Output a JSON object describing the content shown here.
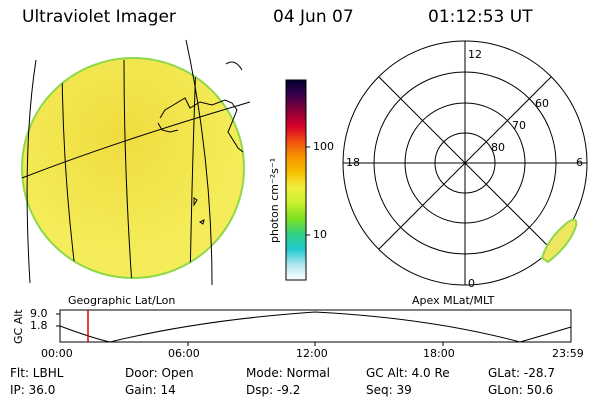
{
  "header": {
    "title": "Ultraviolet Imager",
    "date": "04 Jun 07",
    "time": "01:12:53 UT"
  },
  "colors": {
    "image_fill": "#f4ec58",
    "image_fill_hi": "#f0dc40",
    "rim": "#8ed84a",
    "spot_fill": "#eee760"
  },
  "colorbar": {
    "unit_label": "photon cm⁻²s⁻¹",
    "tick_100": "100",
    "tick_10": "10",
    "stops": [
      "#000030",
      "#3a004a",
      "#8a003a",
      "#d8002a",
      "#f05010",
      "#f79500",
      "#f7c000",
      "#f0f040",
      "#c8f030",
      "#80e020",
      "#30d080",
      "#20c8d0",
      "#b0e8f0",
      "#ffffff"
    ]
  },
  "left_panel": {
    "label": "Geographic Lat/Lon"
  },
  "polar": {
    "label": "Apex MLat/MLT",
    "mlt_top": "12",
    "mlt_bottom": "0",
    "mlt_left": "18",
    "mlt_right": "6",
    "lat_60": "60",
    "lat_70": "70",
    "lat_80": "80"
  },
  "alt_plot": {
    "y_label": "GC Alt",
    "y_top": "9.0",
    "y_bottom": "1.8",
    "x_ticks": [
      "00:00",
      "06:00",
      "12:00",
      "18:00",
      "23:59"
    ]
  },
  "info": {
    "flt": "Flt: LBHL",
    "ip": "IP: 36.0",
    "door": "Door: Open",
    "gain": "Gain: 14",
    "mode": "Mode: Normal",
    "dsp": "Dsp:   -9.2",
    "gcalt": "GC Alt: 4.0 Re",
    "seq": "Seq: 39",
    "glat": "GLat: -28.7",
    "glon": "GLon:  50.6"
  }
}
